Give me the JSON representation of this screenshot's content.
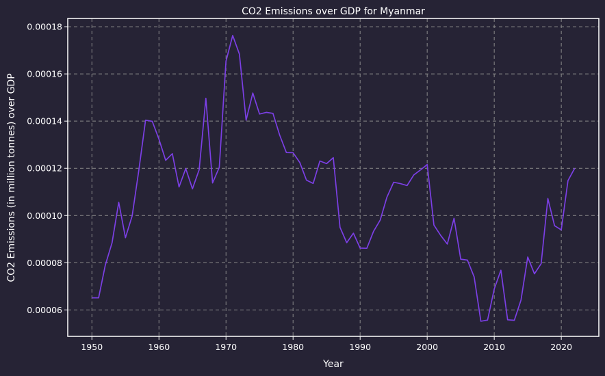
{
  "chart_data": {
    "type": "line",
    "title": "CO2 Emissions over GDP for Myanmar",
    "xlabel": "Year",
    "ylabel": "CO2 Emissions (in million tonnes) over GDP",
    "xlim": [
      1946.4,
      2025.6
    ],
    "ylim": [
      4.88e-05,
      0.0001835
    ],
    "x_ticks": [
      1950,
      1960,
      1970,
      1980,
      1990,
      2000,
      2010,
      2020
    ],
    "y_ticks": [
      6e-05,
      8e-05,
      0.0001,
      0.00012,
      0.00014,
      0.00016,
      0.00018
    ],
    "y_tick_labels": [
      "0.00006",
      "0.00008",
      "0.00010",
      "0.00012",
      "0.00014",
      "0.00016",
      "0.00018"
    ],
    "grid": true,
    "line_color": "#7b3fe4",
    "background_color": "#262335",
    "series": [
      {
        "x": [
          1950,
          1951,
          1952,
          1953,
          1954,
          1955,
          1956,
          1957,
          1958,
          1959,
          1960,
          1961,
          1962,
          1963,
          1964,
          1965,
          1966,
          1967,
          1968,
          1969,
          1970,
          1971,
          1972,
          1973,
          1974,
          1975,
          1976,
          1977,
          1978,
          1979,
          1980,
          1981,
          1982,
          1983,
          1984,
          1985,
          1986,
          1987,
          1988,
          1989,
          1990,
          1991,
          1992,
          1993,
          1994,
          1995,
          1996,
          1997,
          1998,
          1999,
          2000,
          2001,
          2002,
          2003,
          2004,
          2005,
          2006,
          2007,
          2008,
          2009,
          2010,
          2011,
          2012,
          2013,
          2014,
          2015,
          2016,
          2017,
          2018,
          2019,
          2020,
          2021,
          2022
        ],
        "values": [
          6.51e-05,
          6.51e-05,
          7.9e-05,
          8.84e-05,
          0.0001056,
          9.06e-05,
          9.98e-05,
          0.0001193,
          0.0001404,
          0.0001399,
          0.0001323,
          0.0001234,
          0.0001262,
          0.0001121,
          0.0001199,
          0.0001113,
          0.0001194,
          0.0001497,
          0.0001138,
          0.0001204,
          0.0001654,
          0.0001763,
          0.0001684,
          0.0001404,
          0.0001519,
          0.000143,
          0.0001437,
          0.0001433,
          0.0001341,
          0.0001267,
          0.0001266,
          0.0001225,
          0.000115,
          0.0001136,
          0.0001231,
          0.000122,
          0.0001245,
          9.5e-05,
          8.85e-05,
          9.25e-05,
          8.62e-05,
          8.61e-05,
          9.33e-05,
          9.81e-05,
          0.0001078,
          0.0001141,
          0.0001135,
          0.0001127,
          0.0001172,
          0.0001193,
          0.0001216,
          9.6e-05,
          9.16e-05,
          8.79e-05,
          9.88e-05,
          8.15e-05,
          8.11e-05,
          7.4e-05,
          5.52e-05,
          5.57e-05,
          6.89e-05,
          7.68e-05,
          5.58e-05,
          5.56e-05,
          6.42e-05,
          8.24e-05,
          7.53e-05,
          7.96e-05,
          0.0001072,
          9.57e-05,
          9.39e-05,
          0.0001148,
          0.00012
        ]
      }
    ]
  }
}
